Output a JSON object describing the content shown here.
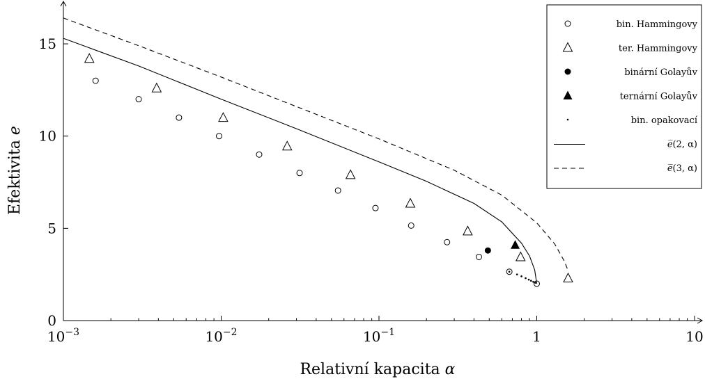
{
  "chart_data": {
    "type": "scatter",
    "x_scale": "log",
    "xlim": [
      0.001,
      10
    ],
    "ylim": [
      0,
      17
    ],
    "grid": false,
    "legend_position": "top-right",
    "xlabel_text": "Relativní kapacita",
    "xlabel_symbol": "α",
    "ylabel_text": "Efektivita",
    "ylabel_symbol": "e",
    "x_ticks": [
      {
        "value": 0.001,
        "base": "10",
        "exp": "−3"
      },
      {
        "value": 0.01,
        "base": "10",
        "exp": "−2"
      },
      {
        "value": 0.1,
        "base": "10",
        "exp": "−1"
      },
      {
        "value": 1,
        "base": "1",
        "exp": ""
      },
      {
        "value": 10,
        "base": "10",
        "exp": ""
      }
    ],
    "y_ticks": [
      {
        "value": 0,
        "label": "0"
      },
      {
        "value": 5,
        "label": "5"
      },
      {
        "value": 10,
        "label": "10"
      },
      {
        "value": 15,
        "label": "15"
      }
    ],
    "series": [
      {
        "name": "bin. Hammingovy",
        "marker": "open-circle",
        "x": [
          0.0016,
          0.003,
          0.0054,
          0.0097,
          0.0174,
          0.0314,
          0.055,
          0.095,
          0.16,
          0.27,
          0.43,
          0.67,
          1.0
        ],
        "y": [
          13.0,
          12.0,
          11.0,
          10.0,
          9.0,
          8.0,
          7.05,
          6.1,
          5.15,
          4.25,
          3.45,
          2.65,
          2.0
        ]
      },
      {
        "name": "ter. Hammingovy",
        "marker": "open-triangle",
        "x": [
          0.00146,
          0.0039,
          0.0103,
          0.0262,
          0.066,
          0.158,
          0.365,
          0.79,
          1.58
        ],
        "y": [
          14.2,
          12.6,
          11.0,
          9.45,
          7.9,
          6.35,
          4.85,
          3.45,
          2.3
        ]
      },
      {
        "name": "binární Golayův",
        "marker": "filled-circle",
        "x": [
          0.49
        ],
        "y": [
          3.8
        ]
      },
      {
        "name": "ternární Golayův",
        "marker": "filled-triangle",
        "x": [
          0.73
        ],
        "y": [
          4.1
        ]
      },
      {
        "name": "bin. opakovací",
        "marker": "dot",
        "x": [
          0.67,
          0.75,
          0.8,
          0.85,
          0.89,
          0.92,
          0.95,
          0.98
        ],
        "y": [
          2.65,
          2.5,
          2.4,
          2.3,
          2.22,
          2.16,
          2.1,
          2.05
        ]
      }
    ],
    "curves": [
      {
        "name_text": "e̅",
        "name_args": "(2, α)",
        "style": "solid",
        "x": [
          0.001,
          0.003,
          0.01,
          0.03,
          0.1,
          0.2,
          0.4,
          0.6,
          0.8,
          0.9,
          0.97,
          1.0
        ],
        "y": [
          15.3,
          13.8,
          12.0,
          10.4,
          8.6,
          7.55,
          6.35,
          5.35,
          4.2,
          3.5,
          2.75,
          2.0
        ]
      },
      {
        "name_text": "e̅",
        "name_args": "(3, α)",
        "style": "dashed",
        "x": [
          0.001,
          0.003,
          0.01,
          0.03,
          0.1,
          0.3,
          0.6,
          1.0,
          1.3,
          1.5,
          1.58
        ],
        "y": [
          16.4,
          14.9,
          13.2,
          11.6,
          9.85,
          8.15,
          6.8,
          5.3,
          4.15,
          3.2,
          2.7
        ]
      }
    ]
  }
}
